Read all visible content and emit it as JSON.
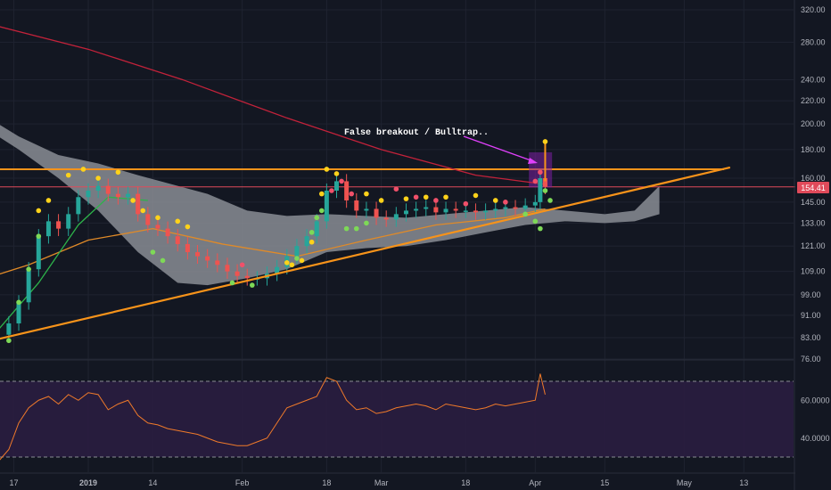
{
  "colors": {
    "background": "#131722",
    "grid": "#1f2330",
    "candle_up": "#26a69a",
    "candle_down": "#ef5350",
    "ma_red": "#c2223a",
    "ma_orange": "#e08a28",
    "ma_green": "#2db34a",
    "trendline": "#f7931a",
    "cloud": "#8a8d94",
    "price_tag": "#e04a5a",
    "rsi_line": "#f07a2a",
    "rsi_band": "#2a1d40",
    "annotation_arrow": "#e040fb",
    "dot_yellow": "#ffd21a",
    "dot_red": "#f0506a",
    "dot_green": "#7ed957"
  },
  "annotation": {
    "text": "False breakout / Bulltrap.."
  },
  "price_tag": {
    "value": "154.41"
  },
  "chart_data": [
    {
      "type": "line",
      "title": "",
      "y_scale": "log",
      "x_tick_labels": [
        "17",
        "2019",
        "14",
        "Feb",
        "18",
        "Mar",
        "18",
        "Apr",
        "15",
        "May",
        "13"
      ],
      "y_tick_labels": [
        "320.00",
        "280.00",
        "240.00",
        "220.00",
        "200.00",
        "180.00",
        "160.00",
        "145.00",
        "133.00",
        "121.00",
        "109.00",
        "99.00",
        "91.00",
        "83.00",
        "76.00"
      ],
      "horizontal_resistance": 166,
      "horizontal_line": 154.41,
      "ascending_trendline": {
        "from": [
          "Dec 14",
          82
        ],
        "to": [
          "May 7",
          166
        ]
      },
      "series": [
        {
          "kind": "close",
          "x": [
            "Dec 14",
            "Dec 16",
            "Dec 18",
            "Dec 20",
            "Dec 22",
            "Dec 24",
            "Dec 26",
            "Dec 28",
            "Dec 30",
            "Jan 1",
            "Jan 3",
            "Jan 5",
            "Jan 7",
            "Jan 9",
            "Jan 11",
            "Jan 13",
            "Jan 15",
            "Jan 17",
            "Jan 19",
            "Jan 21",
            "Jan 23",
            "Jan 25",
            "Jan 27",
            "Jan 29",
            "Jan 31",
            "Feb 2",
            "Feb 4",
            "Feb 6",
            "Feb 8",
            "Feb 10",
            "Feb 12",
            "Feb 14",
            "Feb 16",
            "Feb 18",
            "Feb 20",
            "Feb 22",
            "Feb 24",
            "Feb 26",
            "Feb 28",
            "Mar 2",
            "Mar 4",
            "Mar 6",
            "Mar 8",
            "Mar 10",
            "Mar 12",
            "Mar 14",
            "Mar 16",
            "Mar 18",
            "Mar 20",
            "Mar 22",
            "Mar 24",
            "Mar 26",
            "Mar 28",
            "Mar 30",
            "Apr 1",
            "Apr 2",
            "Apr 3"
          ],
          "y": [
            84,
            88,
            96,
            110,
            126,
            134,
            130,
            138,
            148,
            152,
            155,
            150,
            148,
            150,
            138,
            132,
            130,
            126,
            122,
            118,
            116,
            114,
            112,
            109,
            107,
            106,
            106,
            108,
            111,
            116,
            121,
            126,
            134,
            152,
            158,
            146,
            140,
            141,
            136,
            135,
            138,
            140,
            141,
            142,
            139,
            141,
            140,
            140,
            139,
            140,
            141,
            142,
            141,
            143,
            145,
            160,
            154.41
          ]
        },
        {
          "kind": "rsi",
          "x": [
            "Dec 14",
            "Dec 16",
            "Dec 18",
            "Dec 20",
            "Dec 22",
            "Dec 24",
            "Dec 26",
            "Dec 28",
            "Dec 30",
            "Jan 1",
            "Jan 3",
            "Jan 5",
            "Jan 7",
            "Jan 9",
            "Jan 11",
            "Jan 13",
            "Jan 15",
            "Jan 17",
            "Jan 19",
            "Jan 21",
            "Jan 23",
            "Jan 25",
            "Jan 27",
            "Jan 29",
            "Jan 31",
            "Feb 2",
            "Feb 4",
            "Feb 6",
            "Feb 8",
            "Feb 10",
            "Feb 12",
            "Feb 14",
            "Feb 16",
            "Feb 18",
            "Feb 20",
            "Feb 22",
            "Feb 24",
            "Feb 26",
            "Feb 28",
            "Mar 2",
            "Mar 4",
            "Mar 6",
            "Mar 8",
            "Mar 10",
            "Mar 12",
            "Mar 14",
            "Mar 16",
            "Mar 18",
            "Mar 20",
            "Mar 22",
            "Mar 24",
            "Mar 26",
            "Mar 28",
            "Mar 30",
            "Apr 1",
            "Apr 2",
            "Apr 3"
          ],
          "y": [
            28,
            34,
            48,
            56,
            60,
            62,
            58,
            63,
            60,
            64,
            63,
            55,
            58,
            60,
            52,
            48,
            47,
            45,
            44,
            43,
            42,
            40,
            38,
            37,
            36,
            36,
            38,
            40,
            48,
            56,
            58,
            60,
            62,
            72,
            70,
            60,
            55,
            56,
            53,
            54,
            56,
            57,
            58,
            57,
            55,
            58,
            57,
            56,
            55,
            56,
            58,
            57,
            58,
            59,
            60,
            74,
            63
          ]
        },
        {
          "kind": "ma_long",
          "x": [
            "Dec 10",
            "Jan 1",
            "Jan 20",
            "Feb 10",
            "Mar 1",
            "Mar 20",
            "Apr 3"
          ],
          "y": [
            305,
            272,
            240,
            205,
            180,
            162,
            156
          ]
        },
        {
          "kind": "ma_mid",
          "x": [
            "Dec 10",
            "Dec 20",
            "Jan 1",
            "Jan 14",
            "Jan 28",
            "Feb 12",
            "Feb 26",
            "Mar 12",
            "Mar 26",
            "Apr 3"
          ],
          "y": [
            105,
            112,
            124,
            130,
            122,
            116,
            124,
            132,
            136,
            141
          ]
        },
        {
          "kind": "ma_short",
          "x": [
            "Dec 14",
            "Dec 22",
            "Dec 30",
            "Jan 5",
            "Jan 13"
          ],
          "y": [
            86,
            104,
            132,
            148,
            146
          ]
        }
      ],
      "rsi_levels": {
        "upper": 70,
        "lower": 30,
        "tick_labels": [
          "60.0000",
          "40.0000"
        ]
      },
      "cloud": {
        "x": [
          "Dec 10",
          "Dec 18",
          "Dec 26",
          "Jan 3",
          "Jan 11",
          "Jan 19",
          "Jan 25",
          "Feb 2",
          "Feb 10",
          "Feb 18",
          "Feb 26",
          "Mar 6",
          "Mar 14",
          "Mar 22",
          "Mar 30",
          "Apr 7",
          "Apr 15",
          "Apr 21",
          "Apr 26"
        ],
        "upper": [
          210,
          190,
          176,
          170,
          162,
          155,
          150,
          140,
          137,
          138,
          137,
          136,
          138,
          140,
          142,
          140,
          138,
          140,
          155
        ],
        "lower": [
          200,
          180,
          160,
          140,
          118,
          104,
          103,
          106,
          110,
          118,
          120,
          121,
          124,
          128,
          132,
          134,
          133,
          134,
          138
        ]
      },
      "dots": [
        {
          "x": "Dec 28",
          "y": 162,
          "c": "y"
        },
        {
          "x": "Dec 31",
          "y": 166,
          "c": "y"
        },
        {
          "x": "Jan 3",
          "y": 160,
          "c": "y"
        },
        {
          "x": "Jan 7",
          "y": 164,
          "c": "y"
        },
        {
          "x": "Jan 10",
          "y": 146,
          "c": "y"
        },
        {
          "x": "Jan 12",
          "y": 140,
          "c": "y"
        },
        {
          "x": "Jan 15",
          "y": 136,
          "c": "y"
        },
        {
          "x": "Jan 19",
          "y": 134,
          "c": "y"
        },
        {
          "x": "Jan 21",
          "y": 131,
          "c": "y"
        },
        {
          "x": "Dec 22",
          "y": 140,
          "c": "y"
        },
        {
          "x": "Dec 24",
          "y": 146,
          "c": "y"
        },
        {
          "x": "Feb 10",
          "y": 113,
          "c": "y"
        },
        {
          "x": "Feb 11",
          "y": 112,
          "c": "y"
        },
        {
          "x": "Feb 13",
          "y": 114,
          "c": "y"
        },
        {
          "x": "Feb 15",
          "y": 123,
          "c": "y"
        },
        {
          "x": "Feb 17",
          "y": 150,
          "c": "y"
        },
        {
          "x": "Feb 18",
          "y": 166,
          "c": "y"
        },
        {
          "x": "Feb 20",
          "y": 163,
          "c": "y"
        },
        {
          "x": "Feb 26",
          "y": 150,
          "c": "y"
        },
        {
          "x": "Mar 1",
          "y": 146,
          "c": "y"
        },
        {
          "x": "Mar 6",
          "y": 147,
          "c": "y"
        },
        {
          "x": "Mar 10",
          "y": 148,
          "c": "y"
        },
        {
          "x": "Mar 14",
          "y": 148,
          "c": "y"
        },
        {
          "x": "Mar 20",
          "y": 149,
          "c": "y"
        },
        {
          "x": "Mar 24",
          "y": 146,
          "c": "y"
        },
        {
          "x": "Apr 3",
          "y": 186,
          "c": "y"
        },
        {
          "x": "Feb 1",
          "y": 112,
          "c": "r"
        },
        {
          "x": "Feb 19",
          "y": 152,
          "c": "r"
        },
        {
          "x": "Feb 21",
          "y": 158,
          "c": "r"
        },
        {
          "x": "Feb 23",
          "y": 150,
          "c": "r"
        },
        {
          "x": "Mar 4",
          "y": 153,
          "c": "r"
        },
        {
          "x": "Mar 8",
          "y": 148,
          "c": "r"
        },
        {
          "x": "Mar 12",
          "y": 146,
          "c": "r"
        },
        {
          "x": "Mar 18",
          "y": 144,
          "c": "r"
        },
        {
          "x": "Mar 26",
          "y": 145,
          "c": "r"
        },
        {
          "x": "Apr 1",
          "y": 158,
          "c": "r"
        },
        {
          "x": "Apr 2",
          "y": 164,
          "c": "r"
        },
        {
          "x": "Dec 16",
          "y": 82,
          "c": "g"
        },
        {
          "x": "Dec 18",
          "y": 96,
          "c": "g"
        },
        {
          "x": "Dec 20",
          "y": 110,
          "c": "g"
        },
        {
          "x": "Dec 22",
          "y": 126,
          "c": "g"
        },
        {
          "x": "Jan 14",
          "y": 118,
          "c": "g"
        },
        {
          "x": "Jan 16",
          "y": 114,
          "c": "g"
        },
        {
          "x": "Jan 30",
          "y": 104,
          "c": "g"
        },
        {
          "x": "Feb 3",
          "y": 103,
          "c": "g"
        },
        {
          "x": "Feb 12",
          "y": 115,
          "c": "g"
        },
        {
          "x": "Feb 15",
          "y": 128,
          "c": "g"
        },
        {
          "x": "Feb 16",
          "y": 136,
          "c": "g"
        },
        {
          "x": "Feb 17",
          "y": 140,
          "c": "g"
        },
        {
          "x": "Feb 22",
          "y": 130,
          "c": "g"
        },
        {
          "x": "Feb 24",
          "y": 130,
          "c": "g"
        },
        {
          "x": "Feb 26",
          "y": 133,
          "c": "g"
        },
        {
          "x": "Mar 30",
          "y": 138,
          "c": "g"
        },
        {
          "x": "Apr 1",
          "y": 134,
          "c": "g"
        },
        {
          "x": "Apr 2",
          "y": 130,
          "c": "g"
        },
        {
          "x": "Apr 3",
          "y": 152,
          "c": "g"
        },
        {
          "x": "Apr 4",
          "y": 146,
          "c": "g"
        }
      ]
    }
  ]
}
